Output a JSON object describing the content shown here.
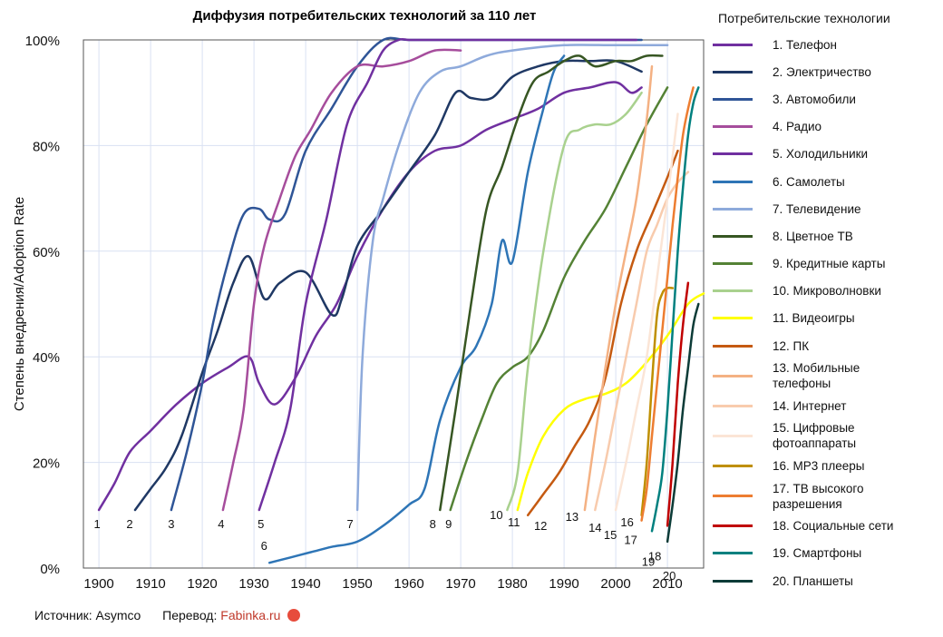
{
  "chart_data": {
    "type": "line",
    "title": "Диффузия потребительских технологий за 110 лет",
    "ylabel": "Степень внедрения/Adoption Rate",
    "xlabel": "",
    "xlim": [
      1897,
      2017
    ],
    "ylim": [
      0,
      100
    ],
    "x_ticks": [
      1900,
      1910,
      1920,
      1930,
      1940,
      1950,
      1960,
      1970,
      1980,
      1990,
      2000,
      2010
    ],
    "x_tick_labels": [
      "1900",
      "1910",
      "1920",
      "1930",
      "1940",
      "1950",
      "1960",
      "1970",
      "1980",
      "1990",
      "2000",
      "2010"
    ],
    "y_ticks": [
      0,
      20,
      40,
      60,
      80,
      100
    ],
    "y_tick_labels": [
      "0%",
      "20%",
      "40%",
      "60%",
      "80%",
      "100%"
    ],
    "grid": true,
    "legend_title": "Потребительские технологии",
    "legend_placement": "right",
    "series": [
      {
        "name": "1. Телефон",
        "num": "1",
        "color": "#7030a0",
        "x": [
          1900,
          1903,
          1906,
          1910,
          1915,
          1920,
          1925,
          1929,
          1931,
          1934,
          1938,
          1942,
          1946,
          1950,
          1955,
          1960,
          1965,
          1970,
          1975,
          1980,
          1985,
          1990,
          1995,
          2000,
          2003,
          2005
        ],
        "y": [
          11,
          16,
          22,
          26,
          31,
          35,
          38,
          40,
          35,
          31,
          36,
          44,
          50,
          59,
          68,
          75,
          79,
          80,
          83,
          85,
          87,
          90,
          91,
          92,
          90,
          91
        ]
      },
      {
        "name": "2. Электричество",
        "num": "2",
        "color": "#1f3864",
        "x": [
          1907,
          1910,
          1913,
          1916,
          1920,
          1923,
          1926,
          1929,
          1932,
          1935,
          1940,
          1945,
          1947,
          1950,
          1955,
          1960,
          1965,
          1969,
          1972,
          1976,
          1980,
          1985,
          1990,
          1995,
          2000,
          2005
        ],
        "y": [
          11,
          15,
          19,
          25,
          37,
          45,
          54,
          59,
          51,
          54,
          56,
          48,
          51,
          61,
          68,
          75,
          82,
          90,
          89,
          89,
          93,
          95,
          96,
          96,
          96,
          94
        ]
      },
      {
        "name": "3. Автомобили",
        "num": "3",
        "color": "#2f5597",
        "x": [
          1914,
          1917,
          1920,
          1922,
          1925,
          1928,
          1931,
          1933,
          1936,
          1940,
          1945,
          1950,
          1955,
          1960,
          1970,
          1980,
          1990,
          2000,
          2005
        ],
        "y": [
          11,
          22,
          35,
          46,
          58,
          67,
          68,
          66,
          67,
          79,
          87,
          95,
          100,
          100,
          100,
          100,
          100,
          100,
          100
        ]
      },
      {
        "name": "4. Радио",
        "num": "4",
        "color": "#a64d9c",
        "x": [
          1924,
          1926,
          1928,
          1930,
          1932,
          1935,
          1938,
          1941,
          1945,
          1950,
          1955,
          1960,
          1965,
          1970
        ],
        "y": [
          11,
          20,
          30,
          50,
          61,
          70,
          78,
          83,
          90,
          95,
          95,
          96,
          98,
          98
        ]
      },
      {
        "name": "5. Холодильники",
        "num": "5",
        "color": "#7030a0",
        "x": [
          1931,
          1934,
          1937,
          1940,
          1944,
          1948,
          1952,
          1955,
          1958,
          1960,
          1963,
          1966,
          1970,
          1980,
          1990,
          2000,
          2004
        ],
        "y": [
          11,
          20,
          30,
          50,
          66,
          84,
          92,
          98,
          100,
          100,
          100,
          100,
          100,
          100,
          100,
          100,
          100
        ]
      },
      {
        "name": "6. Самолеты",
        "num": "6",
        "color": "#2e75b6",
        "x": [
          1933,
          1937,
          1941,
          1945,
          1950,
          1955,
          1960,
          1963,
          1966,
          1970,
          1973,
          1976,
          1978,
          1980,
          1983,
          1986,
          1988,
          1990
        ],
        "y": [
          1,
          2,
          3,
          4,
          5,
          8,
          12,
          15,
          28,
          38,
          42,
          50,
          62,
          58,
          75,
          87,
          94,
          97
        ]
      },
      {
        "name": "7. Телевидение",
        "num": "7",
        "color": "#8eaadb",
        "x": [
          1950,
          1951,
          1953,
          1955,
          1958,
          1962,
          1966,
          1970,
          1975,
          1980,
          1990,
          2000,
          2010
        ],
        "y": [
          11,
          40,
          62,
          70,
          80,
          90,
          94,
          95,
          97,
          98,
          99,
          99,
          99
        ]
      },
      {
        "name": "8. Цветное ТВ",
        "num": "8",
        "color": "#375623",
        "x": [
          1966,
          1969,
          1972,
          1975,
          1978,
          1981,
          1984,
          1987,
          1990,
          1993,
          1996,
          2000,
          2003,
          2006,
          2009
        ],
        "y": [
          11,
          30,
          50,
          68,
          76,
          85,
          92,
          94,
          96,
          97,
          95,
          96,
          96,
          97,
          97
        ]
      },
      {
        "name": "9. Кредитные карты",
        "num": "9",
        "color": "#548235",
        "x": [
          1968,
          1971,
          1974,
          1977,
          1980,
          1983,
          1986,
          1990,
          1994,
          1998,
          2002,
          2006,
          2010
        ],
        "y": [
          11,
          20,
          28,
          35,
          38,
          40,
          45,
          55,
          62,
          68,
          76,
          84,
          91
        ]
      },
      {
        "name": "10. Микроволновки",
        "num": "10",
        "color": "#a9d18e",
        "x": [
          1979,
          1981,
          1983,
          1986,
          1990,
          1993,
          1996,
          1999,
          2002,
          2005
        ],
        "y": [
          11,
          18,
          38,
          60,
          80,
          83,
          84,
          84,
          86,
          90
        ]
      },
      {
        "name": "11. Видеоигры",
        "num": "11",
        "color": "#ffff00",
        "x": [
          1981,
          1983,
          1986,
          1990,
          1994,
          1998,
          2002,
          2006,
          2010,
          2014,
          2017
        ],
        "y": [
          11,
          18,
          25,
          30,
          32,
          33,
          35,
          39,
          44,
          50,
          52
        ]
      },
      {
        "name": "12. ПК",
        "num": "12",
        "color": "#c55a11",
        "x": [
          1983,
          1986,
          1989,
          1992,
          1995,
          1998,
          2001,
          2004,
          2007,
          2010,
          2012
        ],
        "y": [
          10,
          14,
          18,
          23,
          28,
          36,
          50,
          60,
          67,
          74,
          79
        ]
      },
      {
        "name": "13. Мобильные телефоны",
        "num": "13",
        "color": "#f4b183",
        "x": [
          1994,
          1996,
          1998,
          2000,
          2002,
          2004,
          2006,
          2007
        ],
        "y": [
          11,
          25,
          38,
          50,
          60,
          70,
          85,
          95
        ]
      },
      {
        "name": "14. Интернет",
        "num": "14",
        "color": "#f8cbad",
        "x": [
          1996,
          1998,
          2000,
          2002,
          2004,
          2006,
          2008,
          2010,
          2012,
          2014
        ],
        "y": [
          11,
          20,
          30,
          40,
          50,
          60,
          65,
          70,
          73,
          75
        ]
      },
      {
        "name": "15. Цифровые фотоаппараты",
        "num": "15",
        "color": "#fbe5d6",
        "x": [
          2000,
          2002,
          2004,
          2006,
          2008,
          2010,
          2012
        ],
        "y": [
          11,
          20,
          30,
          40,
          55,
          70,
          86
        ]
      },
      {
        "name": "16. MP3 плееры",
        "num": "16",
        "color": "#bf8f00",
        "x": [
          2005,
          2006,
          2007,
          2008,
          2009,
          2010,
          2011
        ],
        "y": [
          10,
          20,
          35,
          48,
          52,
          53,
          53
        ]
      },
      {
        "name": "17. ТВ высокого разрешения",
        "num": "17",
        "color": "#ed7d31",
        "x": [
          2005,
          2006,
          2007,
          2008,
          2009,
          2010,
          2011,
          2012,
          2013,
          2014,
          2015
        ],
        "y": [
          9,
          15,
          25,
          35,
          45,
          55,
          65,
          74,
          82,
          87,
          91
        ]
      },
      {
        "name": "18. Социальные сети",
        "num": "18",
        "color": "#c00000",
        "x": [
          2010,
          2011,
          2012,
          2013,
          2014
        ],
        "y": [
          8,
          20,
          35,
          46,
          54
        ]
      },
      {
        "name": "19. Смартфоны",
        "num": "19",
        "color": "#00807f",
        "x": [
          2007,
          2008,
          2009,
          2010,
          2011,
          2012,
          2013,
          2014,
          2015,
          2016
        ],
        "y": [
          7,
          12,
          18,
          30,
          45,
          60,
          72,
          82,
          88,
          91
        ]
      },
      {
        "name": "20. Планшеты",
        "num": "20",
        "color": "#0c3b37",
        "x": [
          2010,
          2011,
          2012,
          2013,
          2014,
          2015,
          2016
        ],
        "y": [
          5,
          12,
          20,
          30,
          38,
          46,
          50
        ]
      }
    ]
  },
  "footer": {
    "source": "Источник: Asymco",
    "translation_label": "Перевод:",
    "translation_credit": "Fabinka.ru"
  },
  "colors": {
    "grid": "#d9e1f2",
    "axis": "#555555",
    "credit": "#c0392b"
  }
}
